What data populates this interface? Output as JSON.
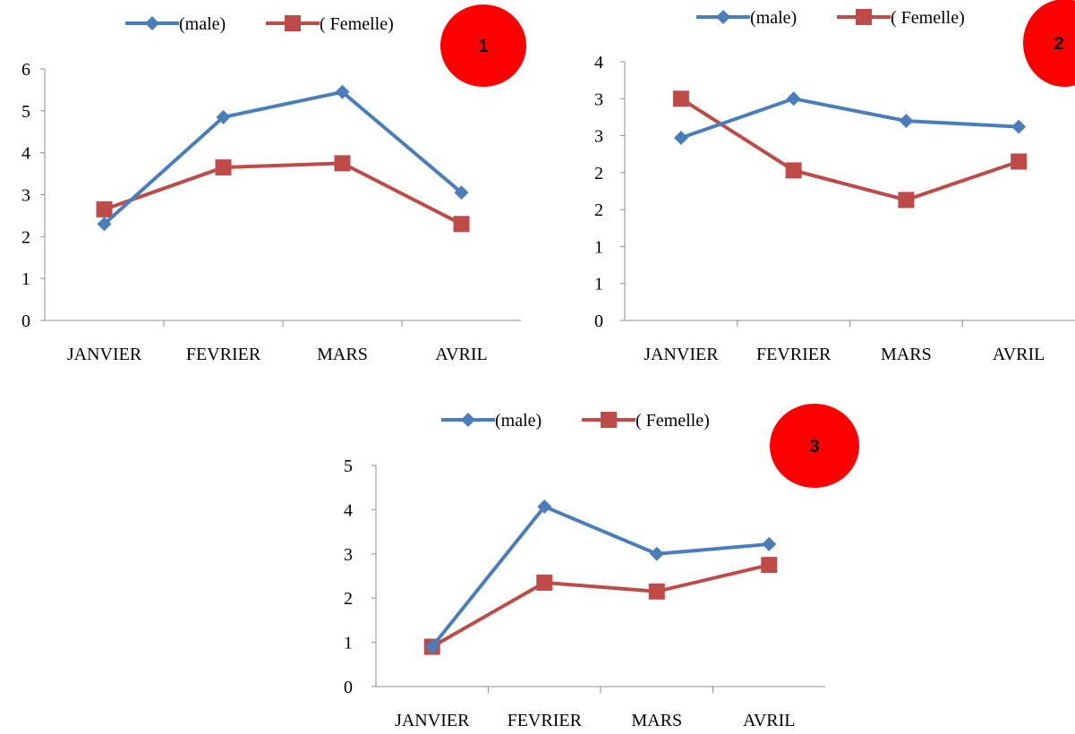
{
  "colors": {
    "male": "#4a7ebb",
    "female": "#be4b48",
    "badge": "#ff0000"
  },
  "chart_data": [
    {
      "type": "line",
      "badge": "1",
      "categories": [
        "JANVIER",
        "FEVRIER",
        "MARS",
        "AVRIL"
      ],
      "yticks": [
        "0",
        "1",
        "2",
        "3",
        "4",
        "5",
        "6"
      ],
      "ylim": [
        0,
        6
      ],
      "series": [
        {
          "name": "(male)",
          "marker": "diamond",
          "values": [
            2.3,
            4.85,
            5.45,
            3.05
          ]
        },
        {
          "name": "( Femelle)",
          "marker": "square",
          "values": [
            2.65,
            3.65,
            3.75,
            2.3
          ]
        }
      ],
      "legend": "top"
    },
    {
      "type": "line",
      "badge": "2",
      "categories": [
        "JANVIER",
        "FEVRIER",
        "MARS",
        "AVRIL"
      ],
      "yticks": [
        "0",
        "1",
        "1",
        "2",
        "2",
        "3",
        "3",
        "4"
      ],
      "ylim": [
        0,
        3.5
      ],
      "series": [
        {
          "name": "(male)",
          "marker": "diamond",
          "values": [
            2.47,
            3.0,
            2.7,
            2.62
          ]
        },
        {
          "name": "( Femelle)",
          "marker": "square",
          "values": [
            3.0,
            2.03,
            1.63,
            2.15
          ]
        }
      ],
      "legend": "top"
    },
    {
      "type": "line",
      "badge": "3",
      "categories": [
        "JANVIER",
        "FEVRIER",
        "MARS",
        "AVRIL"
      ],
      "yticks": [
        "0",
        "1",
        "2",
        "3",
        "4",
        "5"
      ],
      "ylim": [
        0,
        5
      ],
      "series": [
        {
          "name": "(male)",
          "marker": "diamond",
          "values": [
            0.9,
            4.07,
            3.0,
            3.22
          ]
        },
        {
          "name": "( Femelle)",
          "marker": "square",
          "values": [
            0.9,
            2.35,
            2.15,
            2.75
          ]
        }
      ],
      "legend": "top"
    }
  ]
}
